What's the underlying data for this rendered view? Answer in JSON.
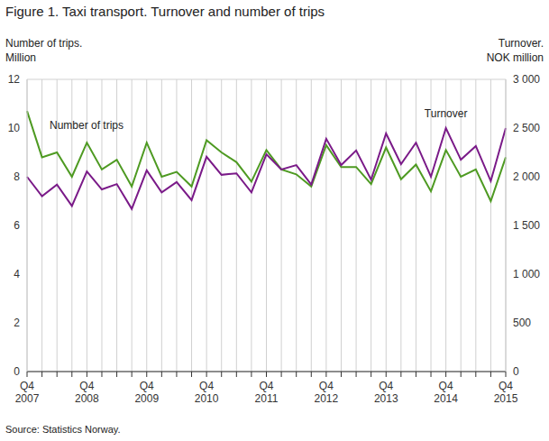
{
  "chart_data": {
    "type": "line",
    "title": "Figure 1. Taxi transport. Turnover and number of trips",
    "source": "Source: Statistics Norway.",
    "y_label": [
      "Number of trips.",
      "Million"
    ],
    "y2_label": [
      "Turnover.",
      "NOK million"
    ],
    "categories": [
      "Q4 2007",
      null,
      null,
      null,
      "Q4 2008",
      null,
      null,
      null,
      "Q4 2009",
      null,
      null,
      null,
      "Q4 2010",
      null,
      null,
      null,
      "Q4 2011",
      null,
      null,
      null,
      "Q4 2012",
      null,
      null,
      null,
      "Q4 2013",
      null,
      null,
      null,
      "Q4 2014",
      null,
      null,
      null,
      "Q4 2015"
    ],
    "series": [
      {
        "name": "Number of trips",
        "color": "#4e9a22",
        "axis": "y",
        "values": [
          10.7,
          8.8,
          9.0,
          8.0,
          9.4,
          8.3,
          8.7,
          7.6,
          9.4,
          8.0,
          8.2,
          7.6,
          9.5,
          9.0,
          8.6,
          7.8,
          9.1,
          8.3,
          8.1,
          7.6,
          9.3,
          8.4,
          8.4,
          7.7,
          9.2,
          7.9,
          8.5,
          7.4,
          9.1,
          8.0,
          8.3,
          7.0,
          8.8
        ]
      },
      {
        "name": "Turnover",
        "color": "#7a1a88",
        "axis": "y2",
        "values": [
          2000,
          1800,
          1920,
          1700,
          2055,
          1870,
          1925,
          1670,
          2065,
          1840,
          1945,
          1760,
          2205,
          2020,
          2035,
          1840,
          2230,
          2075,
          2120,
          1920,
          2390,
          2120,
          2270,
          1970,
          2445,
          2130,
          2350,
          2000,
          2500,
          2175,
          2315,
          1955,
          2500
        ]
      }
    ],
    "ylim": [
      0,
      12
    ],
    "yticks": [
      0,
      2,
      4,
      6,
      8,
      10,
      12
    ],
    "y2lim": [
      0,
      3000
    ],
    "y2ticks": [
      0,
      500,
      {
        "value": 1000,
        "label": "1 000"
      },
      {
        "value": 1500,
        "label": "1 500"
      },
      {
        "value": 2000,
        "label": "2 000"
      },
      {
        "value": 2500,
        "label": "2 500"
      },
      {
        "value": 3000,
        "label": "3 000"
      }
    ],
    "grid": true
  }
}
